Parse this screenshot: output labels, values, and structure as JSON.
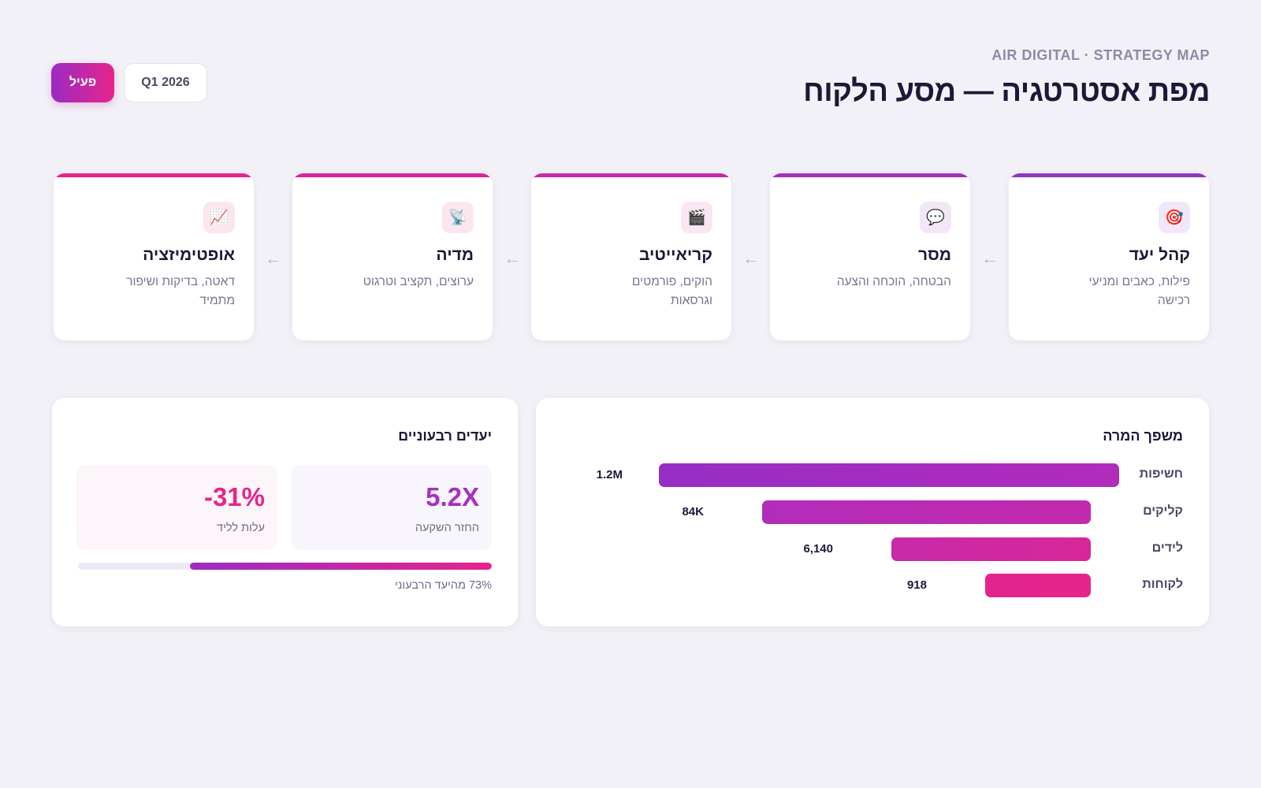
{
  "header": {
    "kicker": "AIR DIGITAL · STRATEGY MAP",
    "title": "מפת אסטרטגיה — מסע הלקוח",
    "status_badge": "פעיל",
    "quarter_badge": "Q1 2026"
  },
  "steps": [
    {
      "title": "קהל יעד",
      "desc": "פילות, כאבים ומניעי רכישה",
      "icon": "target-icon",
      "glyph": "🎯",
      "accent": "#8f35c4",
      "soft": "#f1e7f8"
    },
    {
      "title": "מסר",
      "desc": "הבטחה, הוכחה והצעה",
      "icon": "speech-bubble-icon",
      "glyph": "💬",
      "accent": "#a530bd",
      "soft": "#f3e6f7"
    },
    {
      "title": "קריאייטיב",
      "desc": "הוקים, פורמטים וגרסאות",
      "icon": "clapperboard-icon",
      "glyph": "🎬",
      "accent": "#c02bab",
      "soft": "#f8e6f3"
    },
    {
      "title": "מדיה",
      "desc": "ערוצים, תקציב וטרגוט",
      "icon": "satellite-dish-icon",
      "glyph": "📡",
      "accent": "#d62898",
      "soft": "#fbe6f0"
    },
    {
      "title": "אופטימיזציה",
      "desc": "דאטה, בדיקות ושיפור מתמיד",
      "icon": "chart-up-icon",
      "glyph": "📈",
      "accent": "#e7248b",
      "soft": "#fce6ee"
    }
  ],
  "funnel": {
    "title": "משפך המרה",
    "stages": [
      {
        "label": "חשיפות",
        "value_text": "1.2M",
        "value": 1200000,
        "color_from": "#962dc5",
        "color_to": "#b22cbb"
      },
      {
        "label": "קליקים",
        "value_text": "84K",
        "value": 84000,
        "color_from": "#b22cbb",
        "color_to": "#c32aad"
      },
      {
        "label": "לידים",
        "value_text": "6,140",
        "value": 6140,
        "color_from": "#c82aa8",
        "color_to": "#d7279a"
      },
      {
        "label": "לקוחות",
        "value_text": "918",
        "value": 918,
        "color_from": "#e2248e",
        "color_to": "#e7248b"
      }
    ]
  },
  "goals": {
    "title": "יעדים רבעוניים",
    "kpis": [
      {
        "value": "5.2X",
        "label": "החזר השקעה",
        "color": "#a82fbf"
      },
      {
        "value": "-31%",
        "label": "עלות לליד",
        "color": "#e7248b"
      }
    ],
    "progress": 0.73,
    "progress_caption": "73% מהיעד הרבעוני"
  }
}
